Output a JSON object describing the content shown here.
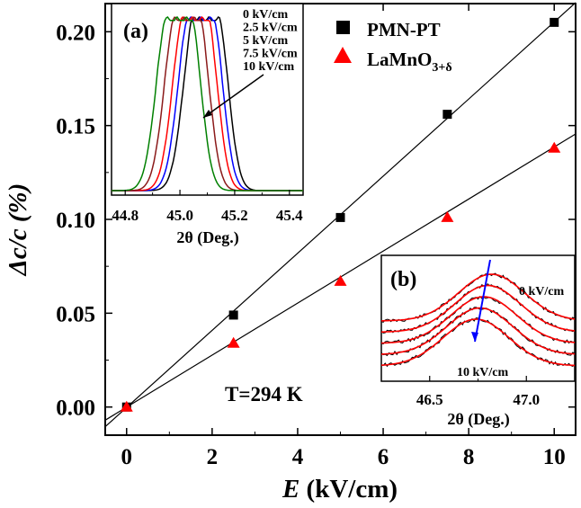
{
  "chart_data": [
    {
      "type": "scatter",
      "panel": "main",
      "xlabel_symbol": "E",
      "xlabel_unit": " (kV/cm)",
      "ylabel": "Δc/c (%)",
      "xlim": [
        -0.5,
        10.5
      ],
      "ylim": [
        -0.015,
        0.215
      ],
      "xticks": [
        0,
        2,
        4,
        6,
        8,
        10
      ],
      "yticks": [
        0.0,
        0.05,
        0.1,
        0.15,
        0.2
      ],
      "ytick_labels": [
        "0.00",
        "0.05",
        "0.10",
        "0.15",
        "0.20"
      ],
      "annotation": "T=294 K",
      "legend_position": "top-right",
      "series": [
        {
          "name": "PMN-PT",
          "marker": "square",
          "color": "#000000",
          "x": [
            0,
            2.5,
            5,
            7.5,
            10
          ],
          "y": [
            0.0,
            0.049,
            0.101,
            0.156,
            0.205
          ],
          "fit": {
            "x": [
              -0.5,
              10.5
            ],
            "y": [
              -0.0105,
              0.2155
            ]
          }
        },
        {
          "name_base": "LaMnO",
          "name_sub": "3+δ",
          "marker": "triangle",
          "color": "#ff0000",
          "x": [
            0,
            2.5,
            5,
            7.5,
            10
          ],
          "y": [
            0.0,
            0.034,
            0.067,
            0.101,
            0.138
          ],
          "fit": {
            "x": [
              -0.5,
              10.5
            ],
            "y": [
              -0.007,
              0.1455
            ]
          }
        }
      ]
    },
    {
      "type": "line",
      "panel": "(a)",
      "xlabel": "2θ (Deg.)",
      "xlim": [
        44.75,
        45.45
      ],
      "xticks": [
        44.8,
        45.0,
        45.2,
        45.4
      ],
      "xtick_labels": [
        "44.8",
        "45.0",
        "45.2",
        "45.4"
      ],
      "field_labels": [
        "0 kV/cm",
        "2.5 kV/cm",
        "5 kV/cm",
        "7.5 kV/cm",
        "10 kV/cm"
      ],
      "series": [
        {
          "field": "0 kV/cm",
          "color": "#000000",
          "peak_2theta": 45.09
        },
        {
          "field": "2.5 kV/cm",
          "color": "#0000ff",
          "peak_2theta": 45.07
        },
        {
          "field": "5 kV/cm",
          "color": "#ff0000",
          "peak_2theta": 45.05
        },
        {
          "field": "7.5 kV/cm",
          "color": "#8b1a1a",
          "peak_2theta": 45.02
        },
        {
          "field": "10 kV/cm",
          "color": "#008000",
          "peak_2theta": 44.99
        }
      ]
    },
    {
      "type": "line",
      "panel": "(b)",
      "xlabel": "2θ (Deg.)",
      "xlim": [
        46.25,
        47.25
      ],
      "xticks": [
        46.5,
        47.0
      ],
      "xtick_labels": [
        "46.5",
        "47.0"
      ],
      "field_labels": [
        "0 kV/cm",
        "10 kV/cm"
      ],
      "curves_count": 5,
      "data_color": "#000000",
      "fit_color": "#ff0000",
      "arrow_color": "#0000ff"
    }
  ]
}
